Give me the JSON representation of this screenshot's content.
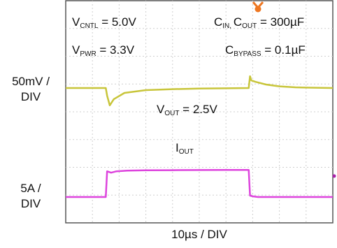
{
  "chart_data": {
    "type": "line",
    "title": "",
    "xlabel": "10µs / DIV",
    "annotations": {
      "vcntl": {
        "sym": "V",
        "sub": "CNTL",
        "rest": " = 5.0V"
      },
      "vpwr": {
        "sym": "V",
        "sub": "PWR",
        "rest": " = 3.3V"
      },
      "cap": {
        "a": "C",
        "a_sub": "IN",
        "sep": ", ",
        "b": "C",
        "b_sub": "OUT",
        "rest": " = 300µF"
      },
      "cbyp": {
        "sym": "C",
        "sub": "BYPASS",
        "rest": " = 0.1µF"
      },
      "vout": {
        "sym": "V",
        "sub": "OUT",
        "rest": " = 2.5V"
      },
      "iout": {
        "sym": "I",
        "sub": "OUT"
      }
    },
    "scales": {
      "v_line1": "50mV /",
      "v_line2": "DIV",
      "i_line1": "5A /",
      "i_line2": "DIV"
    },
    "grid": {
      "divisions_x": 10,
      "divisions_y": 8,
      "dashed": true
    },
    "series": [
      {
        "name": "V_OUT",
        "color": "#c8c53a",
        "x_div": [
          0,
          1.5,
          1.55,
          1.65,
          1.8,
          2.2,
          3,
          4,
          5,
          6,
          6.85,
          6.9,
          6.95,
          7.1,
          7.5,
          8,
          8.6,
          9,
          10
        ],
        "y_div": [
          0,
          0,
          -0.55,
          -1.25,
          -0.8,
          -0.35,
          -0.15,
          -0.08,
          -0.04,
          -0.02,
          0,
          0.85,
          0.55,
          0.45,
          0.25,
          0.12,
          0.05,
          0.03,
          0
        ]
      },
      {
        "name": "I_OUT",
        "color": "#dd44dd",
        "x_div": [
          0,
          1.5,
          1.55,
          1.7,
          1.9,
          2.3,
          3,
          4,
          5,
          6,
          6.85,
          6.9,
          7.0,
          7.2,
          10
        ],
        "y_div": [
          0,
          0,
          1.85,
          1.75,
          1.85,
          1.9,
          1.92,
          1.93,
          1.94,
          1.95,
          1.95,
          0.1,
          0.05,
          0,
          0
        ]
      }
    ]
  }
}
